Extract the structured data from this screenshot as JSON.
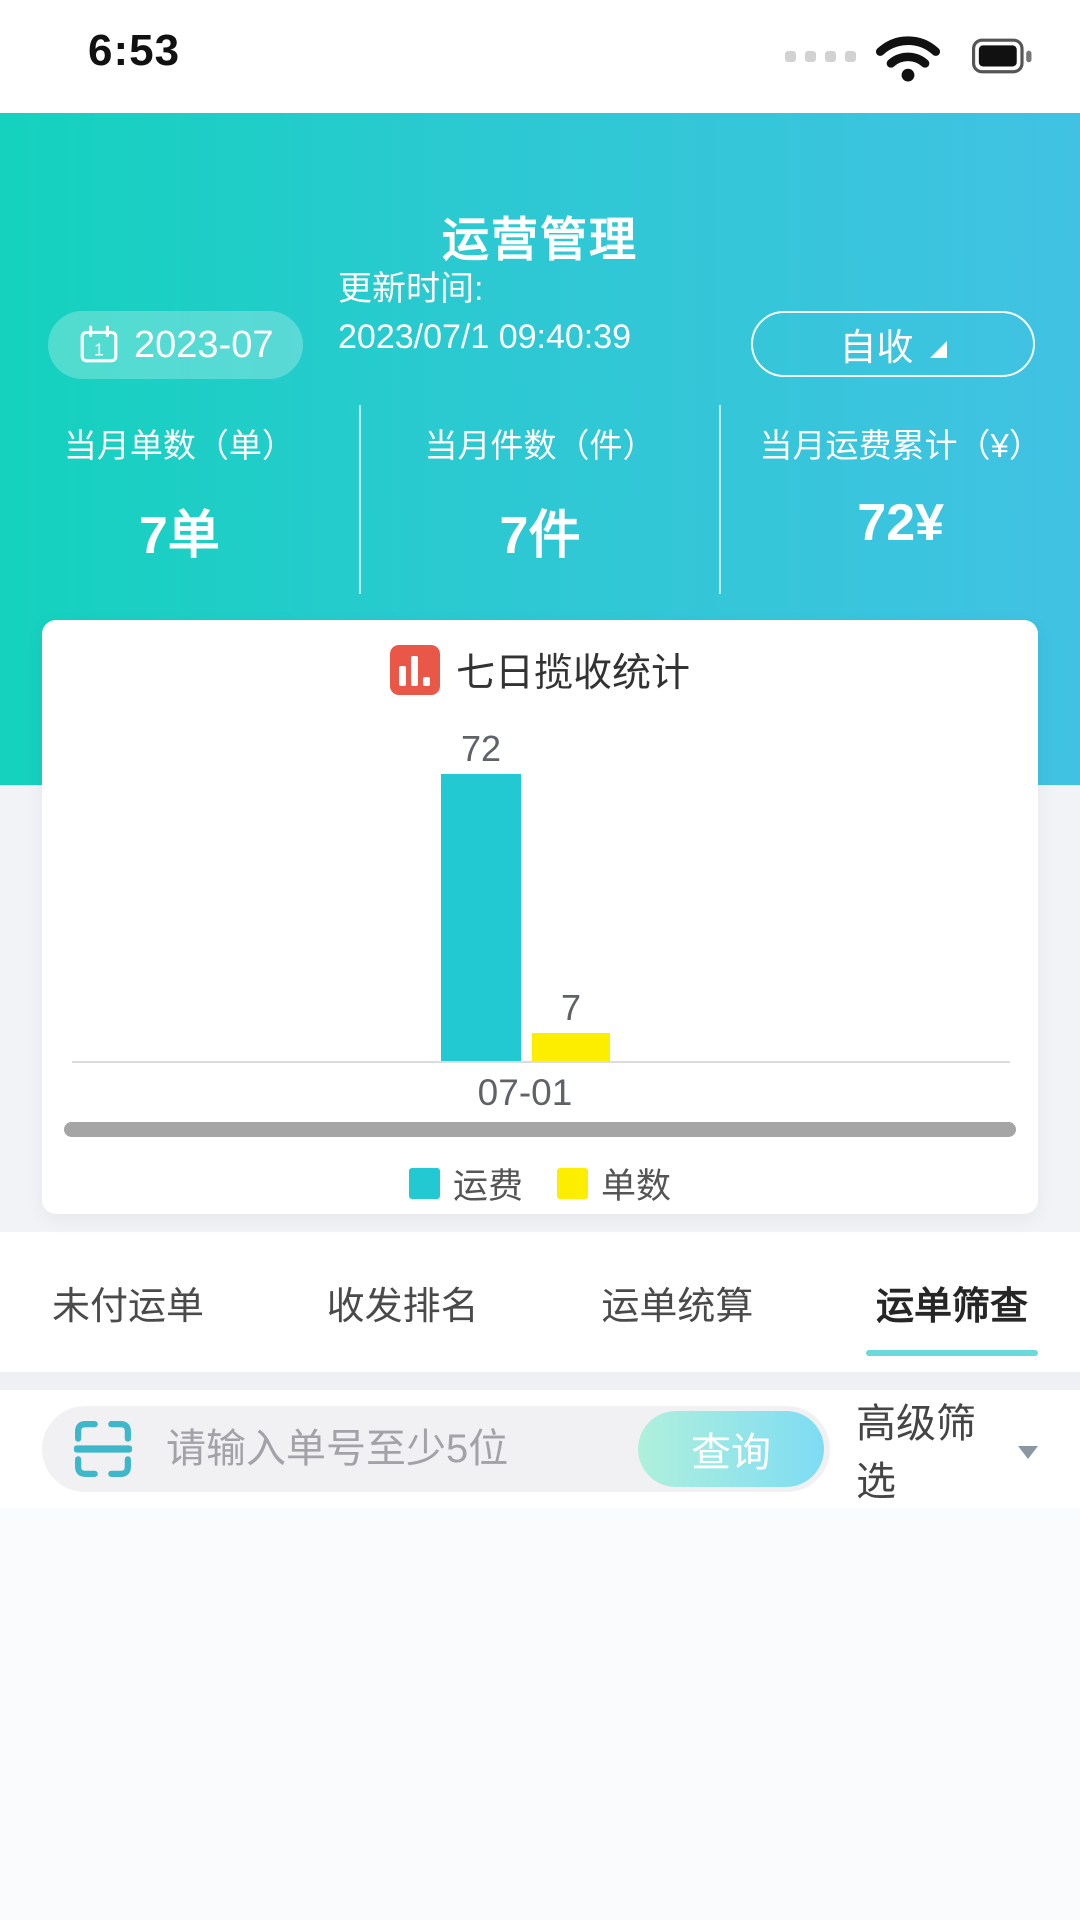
{
  "status_bar": {
    "time": "6:53"
  },
  "header": {
    "title": "运营管理",
    "date_pill": "2023-07",
    "update_label": "更新时间:",
    "update_time": "2023/07/1 09:40:39",
    "mode_button": "自收",
    "stats": [
      {
        "label": "当月单数（单）",
        "value": "7单"
      },
      {
        "label": "当月件数（件）",
        "value": "7件"
      },
      {
        "label": "当月运费累计（¥）",
        "value": "72¥"
      }
    ]
  },
  "chart_data": {
    "type": "bar",
    "title": "七日揽收统计",
    "categories": [
      "07-01"
    ],
    "series": [
      {
        "name": "运费",
        "values": [
          72
        ],
        "color": "#22c8d2"
      },
      {
        "name": "单数",
        "values": [
          7
        ],
        "color": "#fdee00"
      }
    ],
    "ylim": [
      0,
      72
    ],
    "grid": false,
    "legend_position": "bottom",
    "has_horizontal_scrollbar": true
  },
  "tabs": [
    {
      "label": "未付运单",
      "active": false
    },
    {
      "label": "收发排名",
      "active": false
    },
    {
      "label": "运单统算",
      "active": false
    },
    {
      "label": "运单筛查",
      "active": true
    }
  ],
  "search": {
    "placeholder": "请输入单号至少5位",
    "search_button": "查询",
    "filter_label": "高级筛选"
  },
  "colors": {
    "header_gradient_left": "#14d2bd",
    "header_gradient_right": "#41c2e3",
    "bar_freight": "#22c8d2",
    "bar_orders": "#fdee00",
    "chart_title_icon": "#e85747",
    "tab_underline": "#6cd9dc",
    "query_gradient_left": "#aff0dc",
    "query_gradient_right": "#7edcf4",
    "scan_icon": "#3db7c9",
    "scrollbar": "#a5a5a5"
  }
}
